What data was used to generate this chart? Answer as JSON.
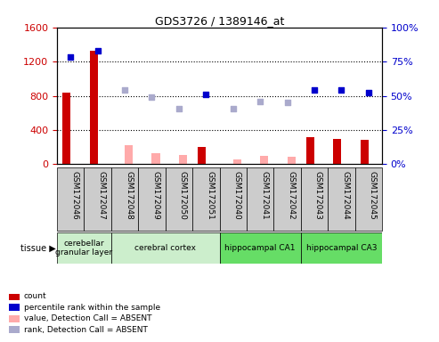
{
  "title": "GDS3726 / 1389146_at",
  "samples": [
    "GSM172046",
    "GSM172047",
    "GSM172048",
    "GSM172049",
    "GSM172050",
    "GSM172051",
    "GSM172040",
    "GSM172041",
    "GSM172042",
    "GSM172043",
    "GSM172044",
    "GSM172045"
  ],
  "count_values": [
    840,
    1330,
    null,
    null,
    null,
    200,
    null,
    null,
    null,
    320,
    290,
    280
  ],
  "absent_value_bars": [
    null,
    null,
    220,
    130,
    110,
    null,
    60,
    100,
    90,
    null,
    null,
    null
  ],
  "percentile_rank_present": [
    1250,
    1330,
    null,
    null,
    null,
    820,
    null,
    null,
    null,
    870,
    870,
    840
  ],
  "percentile_rank_absent": [
    null,
    null,
    870,
    780,
    650,
    null,
    650,
    730,
    720,
    null,
    null,
    null
  ],
  "ylim_left": [
    0,
    1600
  ],
  "ylim_right": [
    0,
    100
  ],
  "yticks_left": [
    0,
    400,
    800,
    1200,
    1600
  ],
  "yticks_right": [
    0,
    25,
    50,
    75,
    100
  ],
  "tissue_boundaries": [
    {
      "start": 0,
      "end": 1,
      "label": "cerebellar\ngranular layer",
      "color": "#cceecc"
    },
    {
      "start": 2,
      "end": 5,
      "label": "cerebral cortex",
      "color": "#cceecc"
    },
    {
      "start": 6,
      "end": 8,
      "label": "hippocampal CA1",
      "color": "#66dd66"
    },
    {
      "start": 9,
      "end": 11,
      "label": "hippocampal CA3",
      "color": "#66dd66"
    }
  ],
  "bar_width": 0.3,
  "count_color": "#cc0000",
  "absent_value_color": "#ffaaaa",
  "rank_present_color": "#0000cc",
  "rank_absent_color": "#aaaacc",
  "tick_label_color_left": "#cc0000",
  "tick_label_color_right": "#0000cc",
  "xtick_bg_color": "#cccccc",
  "legend_labels": [
    "count",
    "percentile rank within the sample",
    "value, Detection Call = ABSENT",
    "rank, Detection Call = ABSENT"
  ],
  "legend_colors": [
    "#cc0000",
    "#0000cc",
    "#ffaaaa",
    "#aaaacc"
  ]
}
